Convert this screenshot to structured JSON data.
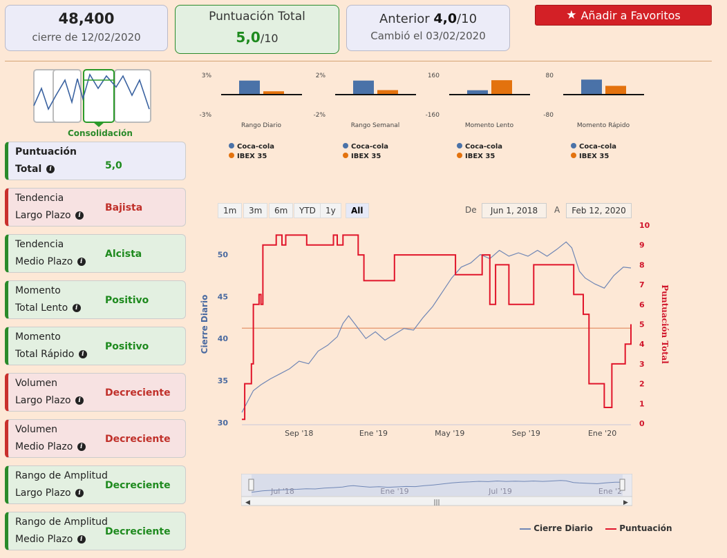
{
  "header": {
    "price": "48,400",
    "price_date": "cierre de 12/02/2020",
    "score_title": "Puntuación Total",
    "score_value": "5,0",
    "score_max": "/10",
    "prev_label": "Anterior",
    "prev_value": "4,0",
    "prev_max": "/10",
    "prev_changed": "Cambió el 03/02/2020",
    "fav_label": "Añadir a Favoritos"
  },
  "pattern_label": "Consolidación",
  "left_cards": [
    {
      "l1": "Puntuación",
      "l2": "Total",
      "value": "5,0"
    },
    {
      "l1": "Tendencia",
      "l2": "Largo Plazo",
      "value": "Bajista"
    },
    {
      "l1": "Tendencia",
      "l2": "Medio Plazo",
      "value": "Alcista"
    },
    {
      "l1": "Momento",
      "l2": "Total Lento",
      "value": "Positivo"
    },
    {
      "l1": "Momento",
      "l2": "Total Rápido",
      "value": "Positivo"
    },
    {
      "l1": "Volumen",
      "l2": "Largo Plazo",
      "value": "Decreciente"
    },
    {
      "l1": "Volumen",
      "l2": "Medio Plazo",
      "value": "Decreciente"
    },
    {
      "l1": "Rango de Amplitud",
      "l2": "Largo Plazo",
      "value": "Decreciente"
    },
    {
      "l1": "Rango de Amplitud",
      "l2": "Medio Plazo",
      "value": "Decreciente"
    }
  ],
  "colors": {
    "green": "#1e8a1e",
    "red": "#c0302a",
    "blue": "#4a72a8",
    "orange": "#e3720e",
    "score_line": "#e0142a",
    "fav": "#d32026"
  },
  "range_buttons": [
    "1m",
    "3m",
    "6m",
    "YTD",
    "1y",
    "All"
  ],
  "range_selected": "All",
  "date_from_label": "De",
  "date_from": "Jun 1, 2018",
  "date_to_label": "A",
  "date_to": "Feb 12, 2020",
  "navigator_labels": [
    "Jul '18",
    "Ene '19",
    "Jul '19",
    "Ene '2"
  ],
  "chart_data": [
    {
      "type": "bar",
      "title": "",
      "xlabel": "Rango Diario",
      "ylim": [
        -3,
        3
      ],
      "ytick_labels": [
        "3%",
        "-3%"
      ],
      "series": [
        {
          "name": "Coca-cola",
          "values": [
            2.1
          ]
        },
        {
          "name": "IBEX 35",
          "values": [
            0.5
          ]
        }
      ]
    },
    {
      "type": "bar",
      "title": "",
      "xlabel": "Rango Semanal",
      "ylim": [
        -2,
        2
      ],
      "ytick_labels": [
        "2%",
        "-2%"
      ],
      "series": [
        {
          "name": "Coca-cola",
          "values": [
            1.4
          ]
        },
        {
          "name": "IBEX 35",
          "values": [
            0.45
          ]
        }
      ]
    },
    {
      "type": "bar",
      "title": "",
      "xlabel": "Momento Lento",
      "ylim": [
        -160,
        160
      ],
      "ytick_labels": [
        "160",
        "-160"
      ],
      "series": [
        {
          "name": "Coca-cola",
          "values": [
            35
          ]
        },
        {
          "name": "IBEX 35",
          "values": [
            115
          ]
        }
      ]
    },
    {
      "type": "bar",
      "title": "",
      "xlabel": "Momento Rápido",
      "ylim": [
        -80,
        80
      ],
      "ytick_labels": [
        "80",
        "-80"
      ],
      "series": [
        {
          "name": "Coca-cola",
          "values": [
            60
          ]
        },
        {
          "name": "IBEX 35",
          "values": [
            35
          ]
        }
      ]
    },
    {
      "type": "line",
      "x_tick_labels": [
        "Sep '18",
        "Ene '19",
        "May '19",
        "Sep '19",
        "Ene '20"
      ],
      "y_left_label": "Cierre Diario",
      "y_left_ticks": [
        30,
        35,
        40,
        45,
        50
      ],
      "y_left_lim": [
        29.9,
        53.5
      ],
      "y_right_label": "Puntuación Total",
      "y_right_ticks": [
        0,
        1,
        2,
        3,
        4,
        5,
        6,
        7,
        8,
        9,
        10
      ],
      "y_right_lim": [
        0,
        10
      ],
      "ref_line_right": 4.8,
      "x_range_months": [
        0,
        20.4
      ],
      "series": [
        {
          "name": "Cierre Diario",
          "axis": "left",
          "points": [
            [
              0.0,
              31.2
            ],
            [
              0.3,
              32.5
            ],
            [
              0.6,
              33.8
            ],
            [
              1.0,
              34.5
            ],
            [
              1.5,
              35.2
            ],
            [
              2.0,
              35.8
            ],
            [
              2.5,
              36.4
            ],
            [
              3.0,
              37.3
            ],
            [
              3.5,
              37.0
            ],
            [
              4.0,
              38.5
            ],
            [
              4.5,
              39.2
            ],
            [
              5.0,
              40.2
            ],
            [
              5.3,
              41.8
            ],
            [
              5.6,
              42.7
            ],
            [
              6.0,
              41.5
            ],
            [
              6.5,
              40.0
            ],
            [
              7.0,
              40.8
            ],
            [
              7.5,
              39.8
            ],
            [
              8.0,
              40.5
            ],
            [
              8.5,
              41.2
            ],
            [
              9.0,
              41.0
            ],
            [
              9.5,
              42.5
            ],
            [
              10.0,
              43.8
            ],
            [
              10.5,
              45.5
            ],
            [
              11.0,
              47.2
            ],
            [
              11.5,
              48.5
            ],
            [
              12.0,
              49.0
            ],
            [
              12.5,
              50.0
            ],
            [
              13.0,
              49.5
            ],
            [
              13.5,
              50.5
            ],
            [
              14.0,
              49.8
            ],
            [
              14.5,
              50.2
            ],
            [
              15.0,
              49.8
            ],
            [
              15.5,
              50.5
            ],
            [
              16.0,
              49.8
            ],
            [
              16.5,
              50.6
            ],
            [
              17.0,
              51.5
            ],
            [
              17.3,
              50.8
            ],
            [
              17.7,
              48.0
            ],
            [
              18.0,
              47.2
            ],
            [
              18.5,
              46.5
            ],
            [
              19.0,
              46.0
            ],
            [
              19.5,
              47.5
            ],
            [
              20.0,
              48.5
            ],
            [
              20.4,
              48.4
            ]
          ]
        },
        {
          "name": "Puntuación",
          "axis": "right",
          "points": [
            [
              0,
              0.2
            ],
            [
              0.15,
              2
            ],
            [
              0.5,
              3
            ],
            [
              0.6,
              6
            ],
            [
              0.9,
              6.5
            ],
            [
              1.0,
              6
            ],
            [
              1.1,
              9
            ],
            [
              1.8,
              9.5
            ],
            [
              2.1,
              9
            ],
            [
              2.3,
              9.5
            ],
            [
              3.4,
              9
            ],
            [
              4.8,
              9.5
            ],
            [
              5.0,
              9
            ],
            [
              5.3,
              9.5
            ],
            [
              6.1,
              8.5
            ],
            [
              6.4,
              7.2
            ],
            [
              7.0,
              7.2
            ],
            [
              8.0,
              8.5
            ],
            [
              8.7,
              8.5
            ],
            [
              9.0,
              8.5
            ],
            [
              10.0,
              8.5
            ],
            [
              11.0,
              8.5
            ],
            [
              11.2,
              7.5
            ],
            [
              12.3,
              7.5
            ],
            [
              12.6,
              8.5
            ],
            [
              13.0,
              6
            ],
            [
              13.3,
              8
            ],
            [
              14.0,
              6
            ],
            [
              15.3,
              8
            ],
            [
              17.0,
              8
            ],
            [
              17.4,
              6.5
            ],
            [
              17.9,
              5.5
            ],
            [
              18.2,
              2
            ],
            [
              19.0,
              0.8
            ],
            [
              19.4,
              3
            ],
            [
              20.1,
              4
            ],
            [
              20.4,
              5
            ]
          ]
        }
      ]
    }
  ],
  "legend": {
    "cierre": "Cierre Diario",
    "puntuacion": "Puntuación"
  }
}
